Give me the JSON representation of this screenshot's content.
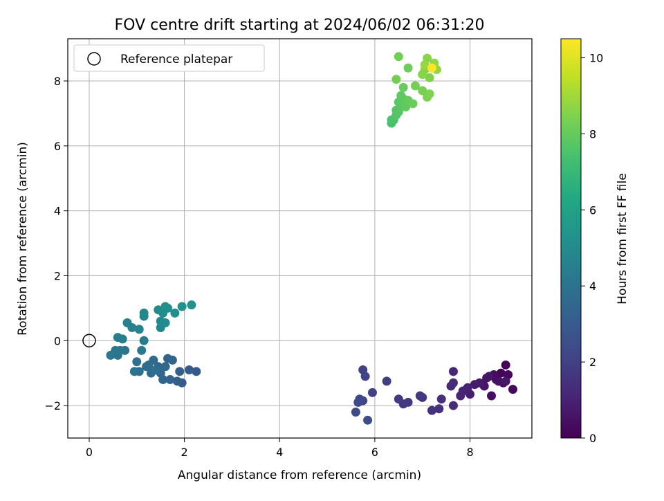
{
  "chart_data": {
    "type": "scatter",
    "title": "FOV centre drift starting at 2024/06/02 06:31:20",
    "xlabel": "Angular distance from reference (arcmin)",
    "ylabel": "Rotation from reference (arcmin)",
    "xlim": [
      -0.45,
      9.3
    ],
    "ylim": [
      -3.0,
      9.3
    ],
    "xticks": [
      0,
      2,
      4,
      6,
      8
    ],
    "yticks": [
      -2,
      0,
      2,
      4,
      6,
      8
    ],
    "grid": true,
    "legend": {
      "placement": "top-left",
      "entries": [
        "Reference platepar"
      ]
    },
    "reference_point": {
      "x": 0,
      "y": 0,
      "label": "Reference platepar"
    },
    "colorbar": {
      "label": "Hours from first FF file",
      "range": [
        0,
        10.5
      ],
      "ticks": [
        0,
        2,
        4,
        6,
        8,
        10
      ],
      "colormap": "viridis"
    },
    "points": [
      [
        8.75,
        -0.75,
        0.1
      ],
      [
        8.65,
        -1.0,
        0.15
      ],
      [
        8.8,
        -1.05,
        0.2
      ],
      [
        8.9,
        -1.5,
        0.25
      ],
      [
        8.7,
        -1.3,
        0.3
      ],
      [
        8.55,
        -1.2,
        0.35
      ],
      [
        8.5,
        -1.05,
        0.4
      ],
      [
        8.45,
        -1.7,
        0.45
      ],
      [
        8.6,
        -1.25,
        0.5
      ],
      [
        8.35,
        -1.15,
        0.55
      ],
      [
        8.3,
        -1.4,
        0.6
      ],
      [
        8.4,
        -1.1,
        0.65
      ],
      [
        8.75,
        -1.25,
        0.7
      ],
      [
        8.2,
        -1.3,
        0.75
      ],
      [
        8.1,
        -1.35,
        0.8
      ],
      [
        8.0,
        -1.65,
        0.9
      ],
      [
        7.95,
        -1.45,
        1.0
      ],
      [
        7.85,
        -1.55,
        1.05
      ],
      [
        7.8,
        -1.7,
        1.1
      ],
      [
        7.65,
        -0.95,
        1.15
      ],
      [
        7.65,
        -1.3,
        1.2
      ],
      [
        7.6,
        -1.4,
        1.25
      ],
      [
        7.65,
        -2.0,
        1.3
      ],
      [
        7.4,
        -1.8,
        1.4
      ],
      [
        7.35,
        -2.1,
        1.45
      ],
      [
        7.2,
        -2.15,
        1.5
      ],
      [
        7.0,
        -1.75,
        1.6
      ],
      [
        6.95,
        -1.7,
        1.65
      ],
      [
        6.7,
        -1.9,
        1.7
      ],
      [
        6.6,
        -1.95,
        1.75
      ],
      [
        6.5,
        -1.8,
        1.8
      ],
      [
        6.25,
        -1.25,
        1.9
      ],
      [
        5.95,
        -1.6,
        2.0
      ],
      [
        5.75,
        -0.9,
        2.05
      ],
      [
        5.8,
        -1.1,
        2.1
      ],
      [
        5.75,
        -1.85,
        2.2
      ],
      [
        5.68,
        -1.8,
        2.25
      ],
      [
        5.65,
        -1.9,
        2.3
      ],
      [
        5.6,
        -2.2,
        2.4
      ],
      [
        5.85,
        -2.45,
        2.45
      ],
      [
        2.25,
        -0.95,
        2.9
      ],
      [
        2.1,
        -0.9,
        3.0
      ],
      [
        1.95,
        -1.3,
        3.05
      ],
      [
        1.85,
        -1.25,
        3.1
      ],
      [
        1.9,
        -0.95,
        3.2
      ],
      [
        1.7,
        -1.2,
        3.25
      ],
      [
        1.65,
        -0.55,
        3.3
      ],
      [
        1.75,
        -0.6,
        3.35
      ],
      [
        1.55,
        -1.2,
        3.4
      ],
      [
        1.5,
        -1.0,
        3.45
      ],
      [
        1.45,
        -0.8,
        3.5
      ],
      [
        1.6,
        -0.8,
        3.55
      ],
      [
        1.35,
        -0.6,
        3.6
      ],
      [
        1.3,
        -1.0,
        3.65
      ],
      [
        1.25,
        -0.75,
        3.7
      ],
      [
        1.2,
        -0.8,
        3.75
      ],
      [
        1.4,
        -0.9,
        3.8
      ],
      [
        1.05,
        -0.95,
        3.85
      ],
      [
        1.0,
        -0.65,
        3.9
      ],
      [
        0.95,
        -0.95,
        3.95
      ],
      [
        0.75,
        -0.3,
        4.0
      ],
      [
        0.6,
        -0.45,
        4.05
      ],
      [
        0.55,
        -0.3,
        4.1
      ],
      [
        0.45,
        -0.45,
        4.15
      ],
      [
        0.65,
        -0.3,
        4.2
      ],
      [
        1.1,
        -0.3,
        4.3
      ],
      [
        1.15,
        0.0,
        4.35
      ],
      [
        0.7,
        0.05,
        4.45
      ],
      [
        0.6,
        0.1,
        4.5
      ],
      [
        0.8,
        0.55,
        4.55
      ],
      [
        0.9,
        0.4,
        4.6
      ],
      [
        1.05,
        0.35,
        4.7
      ],
      [
        1.15,
        0.75,
        4.75
      ],
      [
        1.15,
        0.85,
        4.8
      ],
      [
        1.5,
        0.4,
        4.85
      ],
      [
        1.5,
        0.6,
        4.9
      ],
      [
        1.6,
        0.55,
        4.95
      ],
      [
        1.45,
        0.95,
        5.0
      ],
      [
        1.55,
        0.85,
        5.05
      ],
      [
        1.65,
        1.0,
        5.1
      ],
      [
        1.6,
        1.05,
        5.15
      ],
      [
        1.8,
        0.85,
        5.2
      ],
      [
        1.95,
        1.05,
        5.25
      ],
      [
        2.15,
        1.1,
        5.3
      ],
      [
        6.35,
        6.7,
        7.4
      ],
      [
        6.35,
        6.8,
        7.5
      ],
      [
        6.4,
        6.8,
        7.55
      ],
      [
        6.45,
        6.95,
        7.6
      ],
      [
        6.45,
        7.1,
        7.65
      ],
      [
        6.5,
        7.05,
        7.7
      ],
      [
        6.55,
        7.2,
        7.75
      ],
      [
        6.5,
        7.35,
        7.8
      ],
      [
        6.55,
        7.55,
        7.85
      ],
      [
        6.6,
        7.45,
        7.9
      ],
      [
        6.65,
        7.2,
        7.95
      ],
      [
        6.7,
        7.4,
        8.0
      ],
      [
        6.6,
        7.8,
        8.05
      ],
      [
        6.8,
        7.3,
        8.1
      ],
      [
        6.7,
        8.4,
        8.15
      ],
      [
        6.5,
        8.75,
        8.2
      ],
      [
        6.45,
        8.05,
        8.25
      ],
      [
        6.85,
        7.85,
        8.3
      ],
      [
        7.0,
        7.7,
        8.35
      ],
      [
        7.1,
        7.5,
        8.4
      ],
      [
        7.15,
        7.6,
        8.45
      ],
      [
        7.15,
        8.1,
        8.5
      ],
      [
        7.05,
        8.35,
        8.55
      ],
      [
        7.0,
        8.2,
        8.6
      ],
      [
        7.1,
        8.7,
        8.65
      ],
      [
        7.2,
        8.4,
        8.7
      ],
      [
        7.3,
        8.35,
        8.75
      ],
      [
        7.25,
        8.55,
        8.8
      ],
      [
        7.05,
        8.5,
        8.85
      ],
      [
        7.2,
        8.4,
        10.5
      ]
    ]
  }
}
